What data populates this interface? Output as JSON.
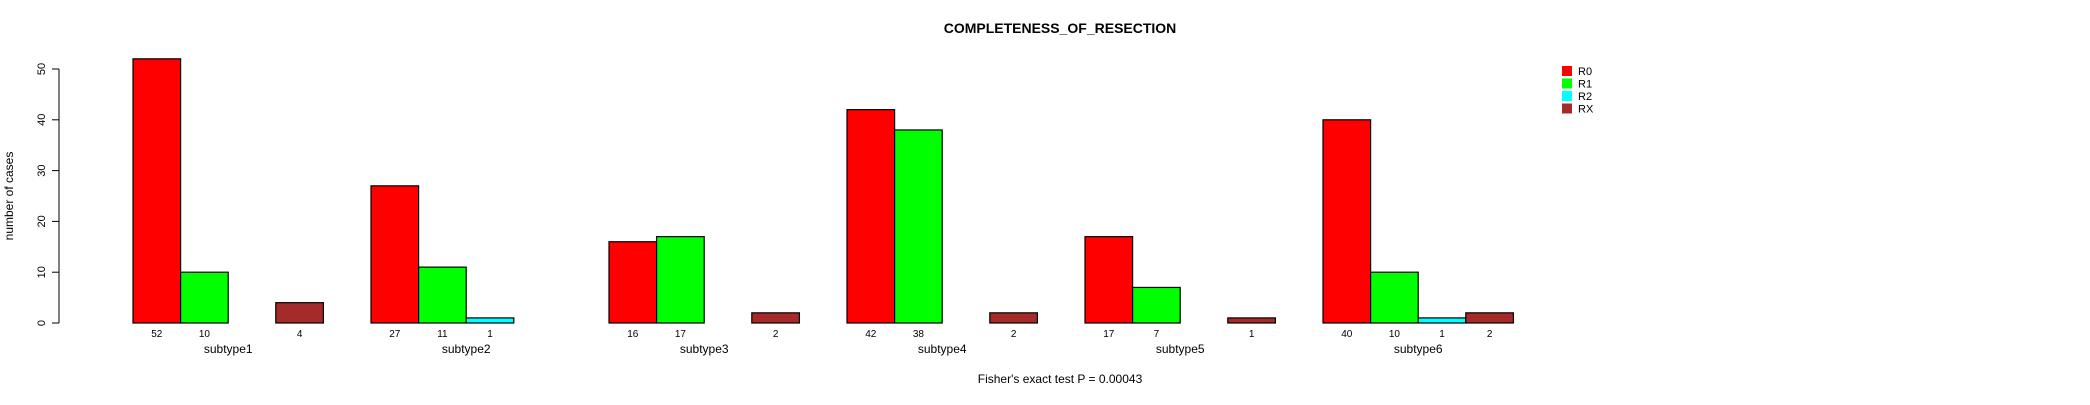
{
  "chart_data": {
    "type": "bar",
    "title": "COMPLETENESS_OF_RESECTION",
    "xlabel": "Fisher's exact test P = 0.00043",
    "ylabel": "number of cases",
    "ylim": [
      0,
      52
    ],
    "yticks": [
      0,
      10,
      20,
      30,
      40,
      50
    ],
    "grid": false,
    "legend_position": "top-right",
    "categories": [
      "subtype1",
      "subtype2",
      "subtype3",
      "subtype4",
      "subtype5",
      "subtype6"
    ],
    "series": [
      {
        "name": "R0",
        "color": "#ff0000",
        "values": [
          52,
          27,
          16,
          42,
          17,
          40
        ]
      },
      {
        "name": "R1",
        "color": "#00ff00",
        "values": [
          10,
          11,
          17,
          38,
          7,
          10
        ]
      },
      {
        "name": "R2",
        "color": "#00ffff",
        "values": [
          0,
          1,
          0,
          0,
          0,
          1
        ]
      },
      {
        "name": "RX",
        "color": "#a52a2a",
        "values": [
          4,
          0,
          2,
          2,
          1,
          2
        ]
      }
    ]
  }
}
